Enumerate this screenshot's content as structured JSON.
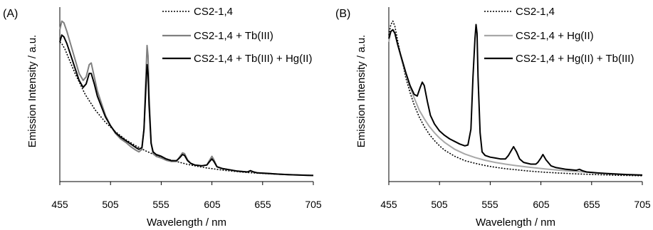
{
  "colors": {
    "dotted": "#000000",
    "gray": "#808080",
    "lightgray": "#a8a8a8",
    "black": "#000000"
  },
  "chart_data": [
    {
      "type": "line",
      "panel_label": "(A)",
      "xlabel": "Wavelength / nm",
      "ylabel": "Emission Intensity / a.u.",
      "xlim": [
        455,
        705
      ],
      "ylim": [
        0,
        100
      ],
      "xticks": [
        "455",
        "505",
        "555",
        "605",
        "655",
        "705"
      ],
      "legend_position": "top-right",
      "series": [
        {
          "name": "CS2-1,4",
          "style": "dotted",
          "color": "#000000",
          "x": [
            455,
            457,
            460,
            465,
            470,
            475,
            480,
            490,
            500,
            510,
            520,
            530,
            540,
            550,
            560,
            570,
            580,
            590,
            600,
            610,
            620,
            630,
            640,
            650,
            660,
            670,
            680,
            690,
            700,
            705
          ],
          "y": [
            80,
            79,
            76,
            69,
            62,
            56,
            50,
            41,
            34,
            28.5,
            24,
            20.5,
            17.5,
            15,
            13,
            11.5,
            10,
            8.8,
            7.8,
            7,
            6.3,
            5.7,
            5.2,
            4.8,
            4.5,
            4.2,
            4,
            3.8,
            3.6,
            3.5
          ]
        },
        {
          "name": "CS2-1,4 + Tb(III)",
          "style": "solid",
          "color": "#808080",
          "x": [
            455,
            457,
            459,
            462,
            466,
            470,
            474,
            478,
            481,
            484,
            486,
            489,
            492,
            496,
            500,
            505,
            510,
            515,
            520,
            525,
            530,
            533,
            536,
            538,
            540,
            541,
            542,
            543,
            545,
            547,
            550,
            555,
            560,
            565,
            570,
            573,
            576,
            578,
            581,
            584,
            588,
            595,
            600,
            602,
            605,
            607,
            610,
            615,
            620,
            630,
            640,
            643,
            646,
            650,
            660,
            670,
            680,
            690,
            700,
            705
          ],
          "y": [
            87,
            92,
            91,
            86,
            78,
            70,
            62,
            58,
            60,
            67,
            68,
            60,
            52,
            45,
            38,
            32,
            27.5,
            24.5,
            22.5,
            20,
            18,
            17,
            18.5,
            30,
            62,
            78,
            72,
            50,
            22,
            16,
            14.5,
            13.5,
            12.2,
            11.5,
            11.5,
            14,
            16.5,
            16,
            12.5,
            10.5,
            9.5,
            9,
            9.5,
            11.5,
            14.5,
            12.5,
            8.5,
            7.5,
            7,
            6,
            5.5,
            6.3,
            5.6,
            5,
            4.6,
            4.3,
            4,
            3.8,
            3.6,
            3.5
          ]
        },
        {
          "name": "CS2-1,4 + Tb(III) + Hg(II)",
          "style": "solid",
          "color": "#000000",
          "x": [
            455,
            457,
            459,
            462,
            466,
            470,
            474,
            478,
            481,
            484,
            486,
            489,
            492,
            496,
            500,
            505,
            510,
            515,
            520,
            525,
            530,
            533,
            536,
            538,
            540,
            541,
            542,
            543,
            545,
            547,
            550,
            555,
            560,
            565,
            570,
            573,
            576,
            578,
            581,
            584,
            588,
            595,
            600,
            602,
            605,
            607,
            610,
            615,
            620,
            630,
            640,
            643,
            646,
            650,
            660,
            670,
            680,
            690,
            700,
            705
          ],
          "y": [
            80,
            84,
            83,
            79,
            72,
            65,
            58,
            54,
            56,
            62,
            62,
            56,
            49,
            43,
            37,
            32,
            28,
            25.5,
            23.5,
            21.5,
            19.5,
            18.5,
            19.5,
            30,
            55,
            67,
            62,
            44,
            22,
            17,
            15.5,
            14.5,
            13,
            12,
            12,
            13.5,
            15.5,
            15,
            12,
            10.5,
            9.5,
            9,
            9.5,
            11,
            13,
            11.5,
            8.5,
            7.5,
            7,
            6,
            5.5,
            6.2,
            5.5,
            5,
            4.7,
            4.3,
            4,
            3.8,
            3.6,
            3.5
          ]
        }
      ]
    },
    {
      "type": "line",
      "panel_label": "(B)",
      "xlabel": "Wavelength / nm",
      "ylabel": "Emission Intensity / a.u.",
      "xlim": [
        455,
        705
      ],
      "ylim": [
        0,
        100
      ],
      "xticks": [
        "455",
        "505",
        "555",
        "605",
        "655",
        "705"
      ],
      "legend_position": "top-right",
      "series": [
        {
          "name": "CS2-1,4",
          "style": "dotted",
          "color": "#000000",
          "x": [
            455,
            457,
            459,
            461,
            464,
            468,
            472,
            476,
            480,
            485,
            490,
            495,
            500,
            505,
            510,
            520,
            530,
            540,
            550,
            560,
            570,
            580,
            590,
            600,
            610,
            620,
            630,
            640,
            650,
            660,
            670,
            680,
            690,
            700,
            705
          ],
          "y": [
            84,
            90,
            92,
            89,
            80,
            69,
            59,
            51,
            44,
            37,
            31.5,
            27,
            23.5,
            20.5,
            18,
            14.5,
            12,
            10.5,
            9.2,
            8.2,
            7.4,
            6.8,
            6.2,
            5.7,
            5.3,
            5,
            4.7,
            4.4,
            4.2,
            4,
            3.8,
            3.6,
            3.5,
            3.4,
            3.3
          ]
        },
        {
          "name": "CS2-1,4 + Hg(II)",
          "style": "solid",
          "color": "#a8a8a8",
          "x": [
            455,
            457,
            459,
            461,
            464,
            468,
            472,
            476,
            480,
            485,
            490,
            495,
            500,
            505,
            510,
            520,
            530,
            540,
            550,
            560,
            570,
            580,
            590,
            600,
            610,
            620,
            630,
            640,
            650,
            660,
            670,
            680,
            690,
            700,
            705
          ],
          "y": [
            80,
            86,
            87,
            85,
            78,
            69,
            61,
            54,
            48,
            41,
            36,
            31.5,
            28,
            25,
            22.5,
            18.5,
            15.8,
            13.8,
            12.2,
            11,
            10,
            9.2,
            8.5,
            7.8,
            7.2,
            6.7,
            6.2,
            5.8,
            5.4,
            5,
            4.7,
            4.4,
            4.1,
            3.9,
            3.8
          ]
        },
        {
          "name": "CS2-1,4 + Hg(II) + Tb(III)",
          "style": "solid",
          "color": "#000000",
          "x": [
            455,
            457,
            459,
            461,
            464,
            468,
            472,
            476,
            480,
            483,
            486,
            488,
            490,
            493,
            496,
            500,
            505,
            510,
            515,
            520,
            525,
            530,
            533,
            536,
            538,
            540,
            541,
            542,
            543,
            545,
            547,
            550,
            555,
            560,
            565,
            570,
            573,
            576,
            578,
            581,
            584,
            588,
            595,
            600,
            602,
            605,
            607,
            610,
            615,
            620,
            630,
            640,
            643,
            646,
            650,
            660,
            670,
            680,
            690,
            700,
            705
          ],
          "y": [
            82,
            86,
            87,
            85,
            78,
            70,
            62,
            55,
            50,
            49,
            54,
            57,
            55,
            46,
            38,
            33,
            29,
            26.5,
            24.5,
            23,
            21.5,
            20.5,
            21,
            30,
            60,
            82,
            90,
            85,
            60,
            28,
            17,
            15,
            14,
            13.5,
            13,
            13,
            15,
            18,
            20,
            17,
            13,
            11,
            10,
            10,
            11,
            13.5,
            15.5,
            12.5,
            9,
            8,
            7,
            6.5,
            7,
            6.2,
            5.5,
            5,
            4.6,
            4.3,
            4,
            3.8,
            3.7
          ]
        }
      ]
    }
  ]
}
